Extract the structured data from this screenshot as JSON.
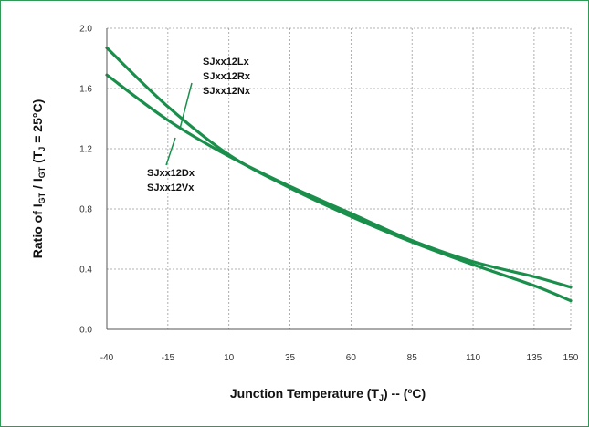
{
  "chart_data": {
    "type": "line",
    "title": "",
    "xlabel": "Junction Temperature (T_J) -- (°C)",
    "xlabel_parts": [
      "Junction Temperature (T",
      "J",
      ") -- (",
      "o",
      "C)"
    ],
    "ylabel": "Ratio of I_GT / I_GT (T_J = 25°C)",
    "ylabel_parts": [
      "Ratio of I",
      "GT",
      " / I",
      "GT",
      " (T",
      "J",
      " = 25°C)"
    ],
    "x_ticks": [
      "-40",
      "-15",
      "10",
      "35",
      "60",
      "85",
      "110",
      "135",
      "150"
    ],
    "y_ticks": [
      "0.0",
      "0.4",
      "0.8",
      "1.2",
      "1.6",
      "2.0"
    ],
    "xlim": [
      -40,
      150
    ],
    "ylim": [
      0,
      2.0
    ],
    "grid": true,
    "x_ticks_num": [
      -40,
      -15,
      10,
      35,
      60,
      85,
      110,
      135,
      150
    ],
    "y_ticks_num": [
      0,
      0.4,
      0.8,
      1.2,
      1.6,
      2.0
    ],
    "series": [
      {
        "color": "#1a8f4c",
        "x": [
          -40,
          -15,
          10,
          35,
          60,
          85,
          110,
          135,
          150
        ],
        "y": [
          1.87,
          1.48,
          1.16,
          0.94,
          0.75,
          0.58,
          0.43,
          0.29,
          0.19
        ]
      },
      {
        "color": "#1a8f4c",
        "x": [
          -40,
          -15,
          10,
          35,
          60,
          85,
          110,
          135,
          150
        ],
        "y": [
          1.69,
          1.39,
          1.15,
          0.95,
          0.77,
          0.59,
          0.45,
          0.35,
          0.28
        ]
      }
    ],
    "annotations": [
      {
        "lines": [
          "SJxx12Lx",
          "SJxx12Rx",
          "SJxx12Nx"
        ]
      },
      {
        "lines": [
          "SJxx12Dx",
          "SJxx12Vx"
        ]
      }
    ]
  },
  "colors": {
    "frame": "#2e9a55",
    "curve": "#1a8f4c",
    "grid": "#9a9a9a",
    "axis": "#555555"
  }
}
